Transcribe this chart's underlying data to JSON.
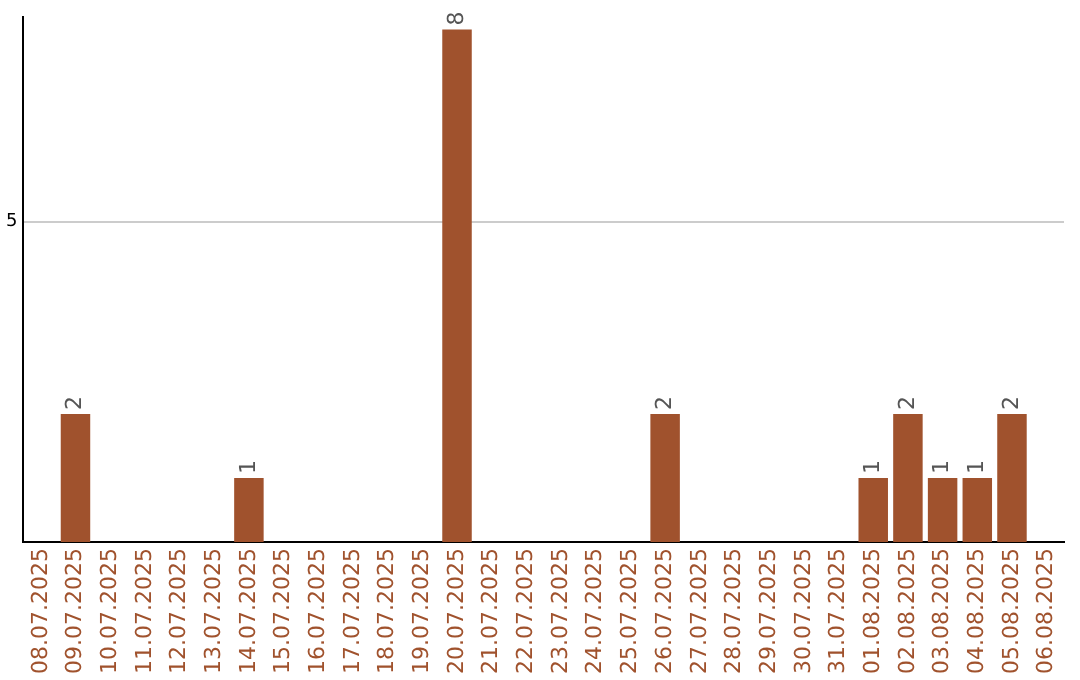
{
  "chart_data": {
    "type": "bar",
    "categories": [
      "08.07.2025",
      "09.07.2025",
      "10.07.2025",
      "11.07.2025",
      "12.07.2025",
      "13.07.2025",
      "14.07.2025",
      "15.07.2025",
      "16.07.2025",
      "17.07.2025",
      "18.07.2025",
      "19.07.2025",
      "20.07.2025",
      "21.07.2025",
      "22.07.2025",
      "23.07.2025",
      "24.07.2025",
      "25.07.2025",
      "26.07.2025",
      "27.07.2025",
      "28.07.2025",
      "29.07.2025",
      "30.07.2025",
      "31.07.2025",
      "01.08.2025",
      "02.08.2025",
      "03.08.2025",
      "04.08.2025",
      "05.08.2025",
      "06.08.2025"
    ],
    "values": [
      0,
      2,
      0,
      0,
      0,
      0,
      1,
      0,
      0,
      0,
      0,
      0,
      8,
      0,
      0,
      0,
      0,
      0,
      2,
      0,
      0,
      0,
      0,
      0,
      1,
      2,
      1,
      1,
      2,
      0
    ],
    "color": "#a0522d",
    "value_labels": [
      null,
      "2",
      null,
      null,
      null,
      null,
      "1",
      null,
      null,
      null,
      null,
      null,
      "8",
      null,
      null,
      null,
      null,
      null,
      "2",
      null,
      null,
      null,
      null,
      null,
      "1",
      "2",
      "1",
      "1",
      "2",
      null
    ],
    "ylim": [
      0,
      8.2
    ],
    "yticks": [
      5
    ],
    "grid": "y",
    "legend": false
  }
}
